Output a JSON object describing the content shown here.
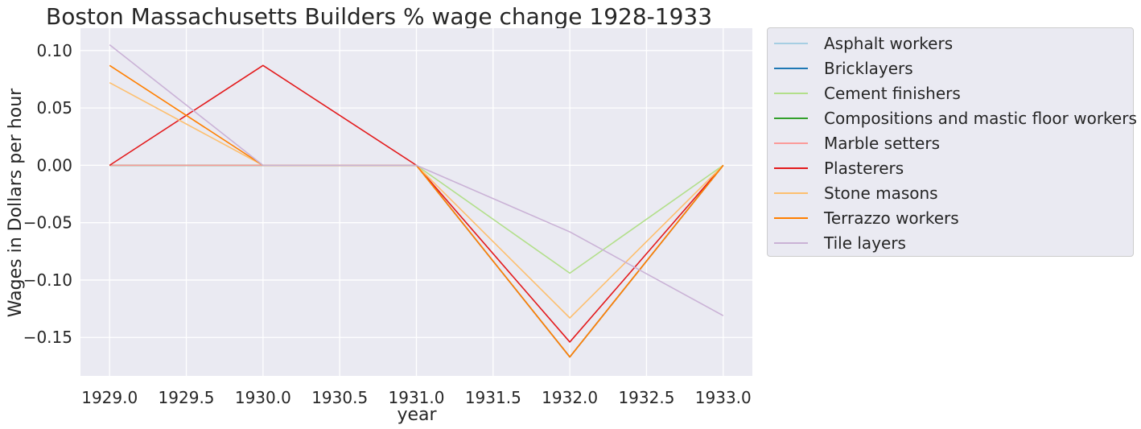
{
  "chart_data": {
    "type": "line",
    "title": "Boston Massachusetts Builders % wage change 1928-1933",
    "xlabel": "year",
    "ylabel": "Wages in Dollars per hour",
    "x": [
      1929,
      1930,
      1931,
      1932,
      1933
    ],
    "xlim": [
      1928.81,
      1933.19
    ],
    "ylim": [
      -0.1835,
      0.1195
    ],
    "xticks": [
      1929.0,
      1929.5,
      1930.0,
      1930.5,
      1931.0,
      1931.5,
      1932.0,
      1932.5,
      1933.0
    ],
    "xtick_labels": [
      "1929.0",
      "1929.5",
      "1930.0",
      "1930.5",
      "1931.0",
      "1931.5",
      "1932.0",
      "1932.5",
      "1933.0"
    ],
    "yticks": [
      0.1,
      0.05,
      0.0,
      -0.05,
      -0.1,
      -0.15
    ],
    "ytick_labels": [
      "0.10",
      "0.05",
      "0.00",
      "−0.05",
      "−0.10",
      "−0.15"
    ],
    "grid": true,
    "legend_position": "outside-right",
    "background": "#eaeaf2",
    "series": [
      {
        "name": "Asphalt workers",
        "color": "#a6cee3",
        "values": [
          0.0,
          0.0,
          0.0,
          -0.167,
          0.0
        ]
      },
      {
        "name": "Bricklayers",
        "color": "#1f78b4",
        "values": [
          0.0,
          0.0,
          0.0,
          -0.167,
          0.0
        ]
      },
      {
        "name": "Cement finishers",
        "color": "#b2df8a",
        "values": [
          0.0,
          0.0,
          0.0,
          -0.094,
          0.0
        ]
      },
      {
        "name": "Compositions and mastic floor workers",
        "color": "#33a02c",
        "values": [
          0.0,
          0.0,
          0.0,
          -0.167,
          0.0
        ]
      },
      {
        "name": "Marble setters",
        "color": "#fb9a99",
        "values": [
          0.0,
          0.0,
          0.0,
          -0.167,
          0.0
        ]
      },
      {
        "name": "Plasterers",
        "color": "#e31a1c",
        "values": [
          0.0,
          0.087,
          0.0,
          -0.154,
          0.0
        ]
      },
      {
        "name": "Stone masons",
        "color": "#fdbf6f",
        "values": [
          0.072,
          0.0,
          0.0,
          -0.133,
          0.0
        ]
      },
      {
        "name": "Terrazzo workers",
        "color": "#ff7f00",
        "values": [
          0.087,
          0.0,
          0.0,
          -0.167,
          0.0
        ]
      },
      {
        "name": "Tile layers",
        "color": "#cab2d6",
        "values": [
          0.105,
          0.0,
          0.0,
          -0.058,
          -0.131
        ]
      }
    ]
  }
}
